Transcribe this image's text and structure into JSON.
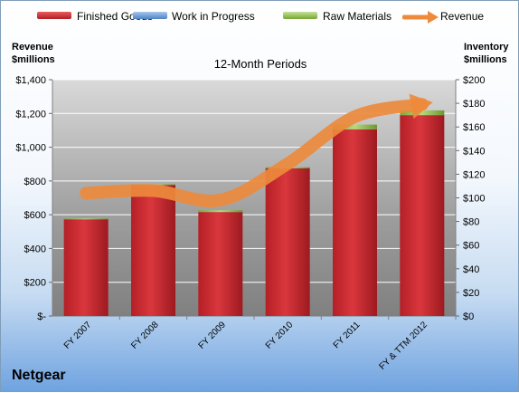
{
  "chart_data": {
    "type": "bar",
    "title": "12-Month Periods",
    "brand": "Netgear",
    "left_axis_title": [
      "Revenue",
      "$millions"
    ],
    "right_axis_title": [
      "Inventory",
      "$millions"
    ],
    "categories": [
      "FY 2007",
      "FY 2008",
      "FY 2009",
      "FY 2010",
      "FY 2011",
      "FY & TTM 2012"
    ],
    "series": [
      {
        "name": "Finished Goods",
        "type": "bar",
        "axis": "right",
        "color": "#c0282d",
        "values": [
          82,
          111,
          88,
          125,
          158,
          170
        ]
      },
      {
        "name": "Work in Progress",
        "type": "bar",
        "axis": "right",
        "color": "#5b8fd1",
        "values": [
          0,
          0,
          0,
          0,
          0,
          0
        ]
      },
      {
        "name": "Raw Materials",
        "type": "bar",
        "axis": "right",
        "color": "#8cb84a",
        "values": [
          0.5,
          0.5,
          1.5,
          1,
          4,
          4
        ]
      },
      {
        "name": "Revenue",
        "type": "line",
        "axis": "left",
        "color": "#ed8a3c",
        "values": [
          728,
          743,
          687,
          902,
          1181,
          1254
        ]
      }
    ],
    "y_left": {
      "min": 0,
      "max": 1400,
      "step": 200,
      "tick_labels": [
        "$-",
        "$200",
        "$400",
        "$600",
        "$800",
        "$1,000",
        "$1,200",
        "$1,400"
      ]
    },
    "y_right": {
      "min": 0,
      "max": 200,
      "step": 20,
      "tick_labels": [
        "$0",
        "$20",
        "$40",
        "$60",
        "$80",
        "$100",
        "$120",
        "$140",
        "$160",
        "$180",
        "$200"
      ]
    },
    "grid": true,
    "legend_position": "top"
  }
}
